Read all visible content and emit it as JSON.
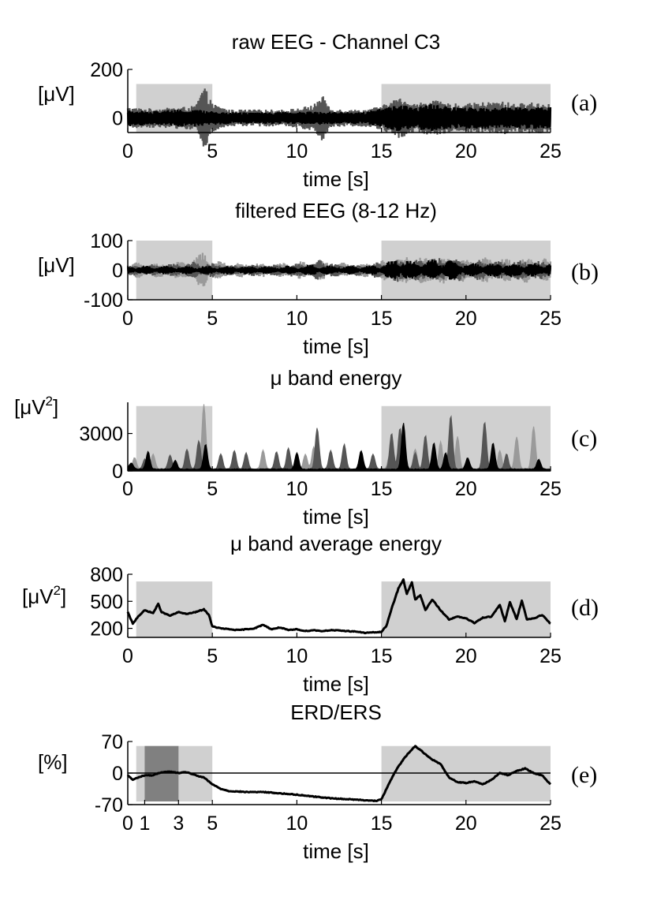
{
  "colors": {
    "shade": "#d0d0d0",
    "shade_dark": "#808080",
    "trace_black": "#000000",
    "trace_dark": "#555555",
    "trace_light": "#9a9a9a"
  },
  "chart_data": [
    {
      "id": "a",
      "type": "line",
      "panel_label": "(a)",
      "title": "raw EEG - Channel C3",
      "xlabel": "time [s]",
      "ylabel": "[μV]",
      "xlim": [
        0,
        25
      ],
      "ylim": [
        -60,
        200
      ],
      "xticks": [
        0,
        5,
        10,
        15,
        20,
        25
      ],
      "xtick_labels": [
        "0",
        "5",
        "10",
        "15",
        "20",
        "25"
      ],
      "yticks": [
        0,
        200
      ],
      "ytick_labels": [
        "0",
        "200"
      ],
      "shaded_intervals": [
        [
          0.5,
          5
        ],
        [
          15,
          25
        ]
      ],
      "shade_top": 140,
      "trace_style": "dense",
      "series": [
        {
          "color": "#555555",
          "x": [
            0,
            1,
            2,
            3,
            4,
            4.5,
            5,
            6,
            7,
            8,
            9,
            10,
            11,
            11.5,
            12,
            13,
            14,
            15,
            16,
            17,
            18,
            19,
            20,
            21,
            22,
            23,
            24,
            25
          ],
          "y": [
            45,
            40,
            40,
            45,
            50,
            135,
            60,
            35,
            35,
            35,
            35,
            40,
            55,
            95,
            40,
            35,
            35,
            50,
            85,
            60,
            75,
            60,
            60,
            65,
            70,
            60,
            65,
            60
          ]
        },
        {
          "color": "#000000",
          "x": [
            0,
            1,
            2,
            3,
            4,
            5,
            6,
            7,
            8,
            9,
            10,
            11,
            12,
            13,
            14,
            15,
            16,
            17,
            18,
            19,
            20,
            21,
            22,
            23,
            24,
            25
          ],
          "y": [
            35,
            30,
            30,
            35,
            35,
            30,
            25,
            25,
            25,
            25,
            25,
            30,
            25,
            25,
            25,
            40,
            55,
            45,
            60,
            45,
            45,
            45,
            45,
            45,
            45,
            45
          ]
        }
      ]
    },
    {
      "id": "b",
      "type": "line",
      "panel_label": "(b)",
      "title": "filtered EEG (8-12 Hz)",
      "xlabel": "time [s]",
      "ylabel": "[μV]",
      "xlim": [
        0,
        25
      ],
      "ylim": [
        -100,
        100
      ],
      "xticks": [
        0,
        5,
        10,
        15,
        20,
        25
      ],
      "xtick_labels": [
        "0",
        "5",
        "10",
        "15",
        "20",
        "25"
      ],
      "yticks": [
        -100,
        0,
        100
      ],
      "ytick_labels": [
        "-100",
        "0",
        "100"
      ],
      "shaded_intervals": [
        [
          0.5,
          5
        ],
        [
          15,
          25
        ]
      ],
      "shade_top": 100,
      "shade_bottom": -100,
      "trace_style": "burst",
      "series": [
        {
          "color": "#9a9a9a",
          "x": [
            0,
            1,
            2,
            3,
            4,
            4.5,
            5,
            6,
            7,
            8,
            9,
            10,
            11,
            12,
            13,
            14,
            15,
            16,
            17,
            18,
            19,
            20,
            21,
            22,
            23,
            24,
            25
          ],
          "y": [
            30,
            25,
            25,
            30,
            45,
            70,
            40,
            25,
            25,
            25,
            25,
            30,
            35,
            30,
            25,
            25,
            35,
            50,
            45,
            55,
            45,
            40,
            45,
            40,
            45,
            45,
            40
          ]
        },
        {
          "color": "#555555",
          "x": [
            0,
            1,
            2,
            3,
            4,
            5,
            6,
            7,
            8,
            9,
            10,
            11,
            11.5,
            12,
            13,
            14,
            15,
            16,
            17,
            18,
            19,
            20,
            21,
            22,
            23,
            24,
            25
          ],
          "y": [
            20,
            20,
            20,
            25,
            30,
            25,
            20,
            20,
            20,
            20,
            25,
            30,
            45,
            25,
            20,
            20,
            30,
            40,
            35,
            45,
            40,
            35,
            35,
            30,
            35,
            35,
            30
          ]
        },
        {
          "color": "#000000",
          "x": [
            0,
            1,
            2,
            3,
            4,
            5,
            6,
            7,
            8,
            9,
            10,
            11,
            12,
            13,
            14,
            15,
            16,
            17,
            18,
            19,
            20,
            21,
            22,
            23,
            24,
            25
          ],
          "y": [
            15,
            15,
            15,
            15,
            15,
            15,
            15,
            15,
            15,
            15,
            15,
            20,
            15,
            15,
            15,
            20,
            45,
            30,
            40,
            35,
            25,
            25,
            25,
            25,
            25,
            25
          ]
        }
      ]
    },
    {
      "id": "c",
      "type": "area",
      "panel_label": "(c)",
      "title": "μ band energy",
      "xlabel": "time [s]",
      "ylabel": "[μV2]",
      "xlim": [
        0,
        25
      ],
      "ylim": [
        0,
        5500
      ],
      "xticks": [
        0,
        5,
        10,
        15,
        20,
        25
      ],
      "xtick_labels": [
        "0",
        "5",
        "10",
        "15",
        "20",
        "25"
      ],
      "yticks": [
        0,
        3000
      ],
      "ytick_labels": [
        "0",
        "3000"
      ],
      "shaded_intervals": [
        [
          0.5,
          5
        ],
        [
          15,
          25
        ]
      ],
      "shade_top": 5200,
      "series": [
        {
          "color": "#9a9a9a",
          "peaks": [
            [
              0.4,
              900
            ],
            [
              1.5,
              1200
            ],
            [
              4.5,
              5200
            ],
            [
              8,
              1500
            ],
            [
              10.5,
              1200
            ],
            [
              11,
              1800
            ],
            [
              15.5,
              1200
            ],
            [
              17,
              1600
            ],
            [
              18.5,
              2200
            ],
            [
              19.5,
              2600
            ],
            [
              22,
              1500
            ],
            [
              23,
              2600
            ],
            [
              24,
              3400
            ]
          ]
        },
        {
          "color": "#555555",
          "peaks": [
            [
              1,
              800
            ],
            [
              2.5,
              1100
            ],
            [
              3.5,
              1600
            ],
            [
              4.2,
              2300
            ],
            [
              5.5,
              1200
            ],
            [
              6.3,
              1500
            ],
            [
              7,
              1300
            ],
            [
              8.8,
              1400
            ],
            [
              9.5,
              1700
            ],
            [
              11.2,
              3300
            ],
            [
              12,
              1500
            ],
            [
              12.8,
              2000
            ],
            [
              14.5,
              1200
            ],
            [
              15.6,
              2900
            ],
            [
              16.1,
              3300
            ],
            [
              17,
              1300
            ],
            [
              17.6,
              2700
            ],
            [
              19.1,
              4300
            ],
            [
              21.1,
              3800
            ],
            [
              22.4,
              1200
            ]
          ]
        },
        {
          "color": "#000000",
          "peaks": [
            [
              0.2,
              500
            ],
            [
              1.2,
              1400
            ],
            [
              2.8,
              700
            ],
            [
              4.6,
              2000
            ],
            [
              10,
              1300
            ],
            [
              13.8,
              1500
            ],
            [
              16.3,
              3700
            ],
            [
              18.1,
              2100
            ],
            [
              18.8,
              1300
            ],
            [
              20.1,
              900
            ],
            [
              21.6,
              2100
            ],
            [
              24.3,
              800
            ]
          ]
        }
      ]
    },
    {
      "id": "d",
      "type": "line",
      "panel_label": "(d)",
      "title": "μ band average energy",
      "xlabel": "time [s]",
      "ylabel": "[μV2]",
      "xlim": [
        0,
        25
      ],
      "ylim": [
        100,
        800
      ],
      "xticks": [
        0,
        5,
        10,
        15,
        20,
        25
      ],
      "xtick_labels": [
        "0",
        "5",
        "10",
        "15",
        "20",
        "25"
      ],
      "yticks": [
        200,
        500,
        800
      ],
      "ytick_labels": [
        "200",
        "500",
        "800"
      ],
      "shaded_intervals": [
        [
          0.5,
          5
        ],
        [
          15,
          25
        ]
      ],
      "shade_top": 720,
      "series": [
        {
          "color": "#000000",
          "x": [
            0,
            0.3,
            0.6,
            1,
            1.5,
            1.8,
            2,
            2.5,
            3,
            3.5,
            4,
            4.5,
            4.8,
            5,
            5.5,
            6,
            6.5,
            7,
            7.5,
            8,
            8.5,
            9,
            9.5,
            10,
            10.5,
            11,
            11.5,
            12,
            12.5,
            13,
            13.5,
            14,
            14.5,
            15,
            15.3,
            15.6,
            16,
            16.3,
            16.5,
            16.8,
            17,
            17.3,
            17.6,
            18,
            18.5,
            19,
            19.5,
            20,
            20.5,
            21,
            21.5,
            22,
            22.3,
            22.6,
            23,
            23.3,
            23.6,
            24,
            24.5,
            25
          ],
          "y": [
            380,
            250,
            330,
            400,
            370,
            470,
            380,
            340,
            380,
            360,
            380,
            410,
            350,
            220,
            200,
            190,
            180,
            190,
            200,
            240,
            190,
            210,
            180,
            190,
            170,
            180,
            170,
            180,
            175,
            170,
            165,
            150,
            155,
            160,
            230,
            420,
            640,
            740,
            580,
            710,
            520,
            570,
            400,
            520,
            400,
            300,
            330,
            310,
            260,
            320,
            330,
            460,
            280,
            490,
            300,
            510,
            300,
            310,
            350,
            250
          ]
        }
      ]
    },
    {
      "id": "e",
      "type": "line",
      "panel_label": "(e)",
      "title": "ERD/ERS",
      "xlabel": "time [s]",
      "ylabel": "[%]",
      "xlim": [
        0,
        25
      ],
      "ylim": [
        -70,
        70
      ],
      "xticks": [
        0,
        1,
        3,
        5,
        10,
        15,
        20,
        25
      ],
      "xtick_labels": [
        "0",
        "1",
        "3",
        "5",
        "10",
        "15",
        "20",
        "25"
      ],
      "yticks": [
        -70,
        0,
        70
      ],
      "ytick_labels": [
        "-70",
        "0",
        "70"
      ],
      "shaded_intervals": [
        [
          0.5,
          5
        ],
        [
          15,
          25
        ]
      ],
      "shade_top": 60,
      "shade_bottom": -63,
      "dark_interval": [
        1,
        3
      ],
      "reference_line": 0,
      "series": [
        {
          "color": "#000000",
          "x": [
            0,
            0.3,
            0.6,
            1,
            1.5,
            2,
            2.5,
            3,
            3.5,
            4,
            4.5,
            5,
            5.5,
            6,
            7,
            8,
            9,
            10,
            11,
            12,
            13,
            14,
            14.7,
            15,
            15.3,
            15.7,
            16,
            16.5,
            17,
            17.5,
            18,
            18.5,
            19,
            19.5,
            20,
            20.5,
            21,
            21.5,
            22,
            22.5,
            23,
            23.5,
            24,
            24.5,
            25
          ],
          "y": [
            -5,
            -15,
            -10,
            -5,
            -5,
            2,
            3,
            0,
            2,
            -5,
            -10,
            -25,
            -35,
            -40,
            -42,
            -42,
            -45,
            -48,
            -52,
            -56,
            -58,
            -60,
            -62,
            -58,
            -35,
            -5,
            15,
            40,
            60,
            45,
            30,
            20,
            -10,
            -20,
            -22,
            -18,
            -25,
            -15,
            0,
            -5,
            5,
            10,
            0,
            -5,
            -25
          ]
        }
      ]
    }
  ]
}
